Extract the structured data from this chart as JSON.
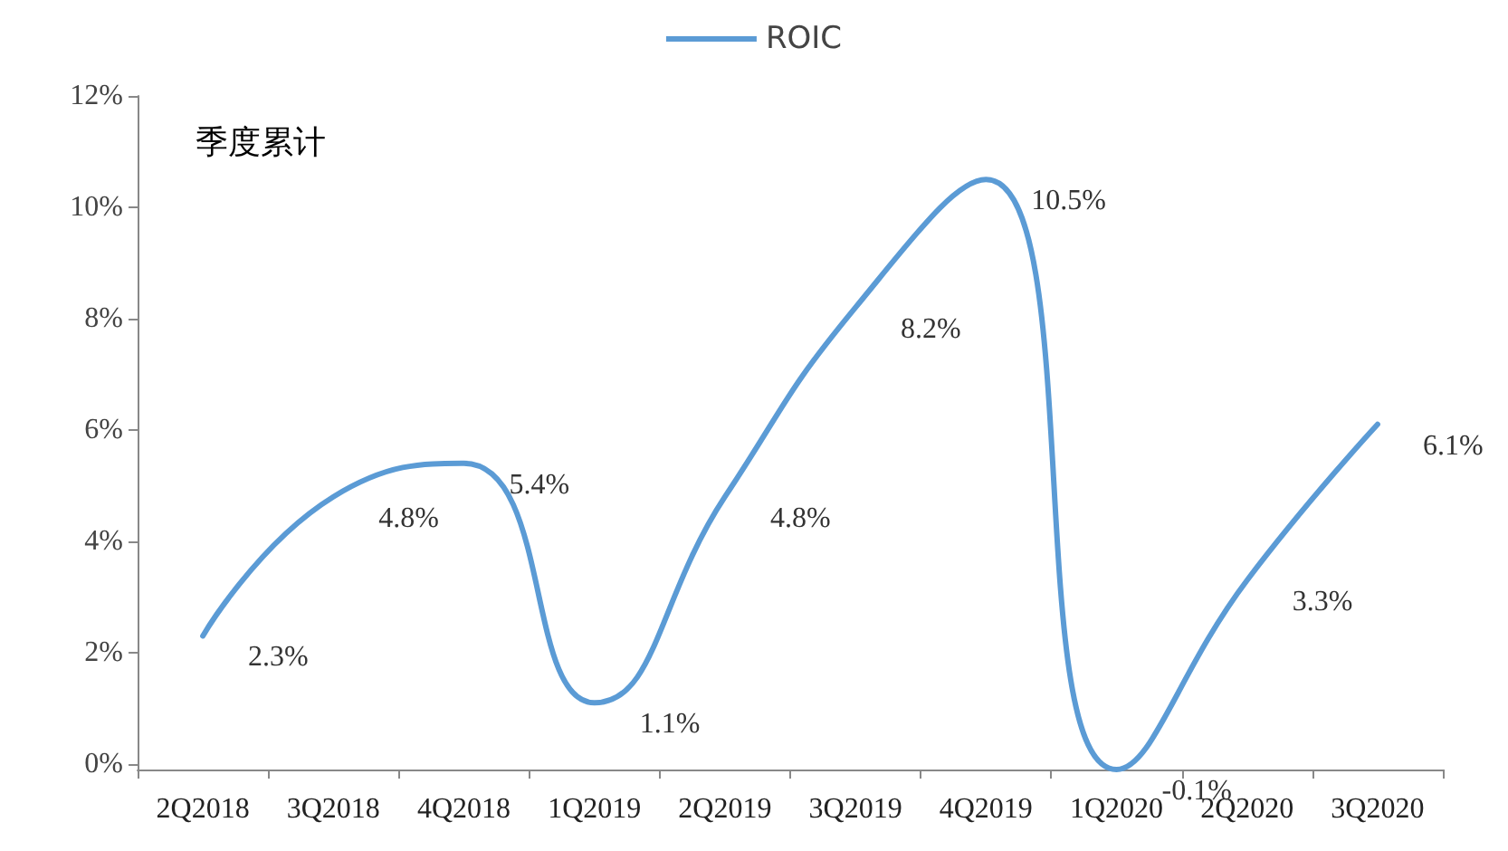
{
  "chart_data": {
    "type": "line",
    "categories": [
      "2Q2018",
      "3Q2018",
      "4Q2018",
      "1Q2019",
      "2Q2019",
      "3Q2019",
      "4Q2019",
      "1Q2020",
      "2Q2020",
      "3Q2020"
    ],
    "series": [
      {
        "name": "ROIC",
        "color": "#5b9bd5",
        "values": [
          2.3,
          4.8,
          5.4,
          1.1,
          4.8,
          8.2,
          10.5,
          -0.1,
          3.3,
          6.1
        ],
        "value_labels": [
          "2.3%",
          "4.8%",
          "5.4%",
          "1.1%",
          "4.8%",
          "8.2%",
          "10.5%",
          "-0.1%",
          "3.3%",
          "6.1%"
        ]
      }
    ],
    "ylim": [
      -0.1,
      12
    ],
    "yticks": [
      {
        "value": 0,
        "label": "0%"
      },
      {
        "value": 2,
        "label": "2%"
      },
      {
        "value": 4,
        "label": "4%"
      },
      {
        "value": 6,
        "label": "6%"
      },
      {
        "value": 8,
        "label": "8%"
      },
      {
        "value": 10,
        "label": "10%"
      },
      {
        "value": 12,
        "label": "12%"
      }
    ],
    "annotations": [
      "季度累计"
    ],
    "legend": "top",
    "grid": false,
    "marker": "none",
    "line_style": "solid"
  }
}
